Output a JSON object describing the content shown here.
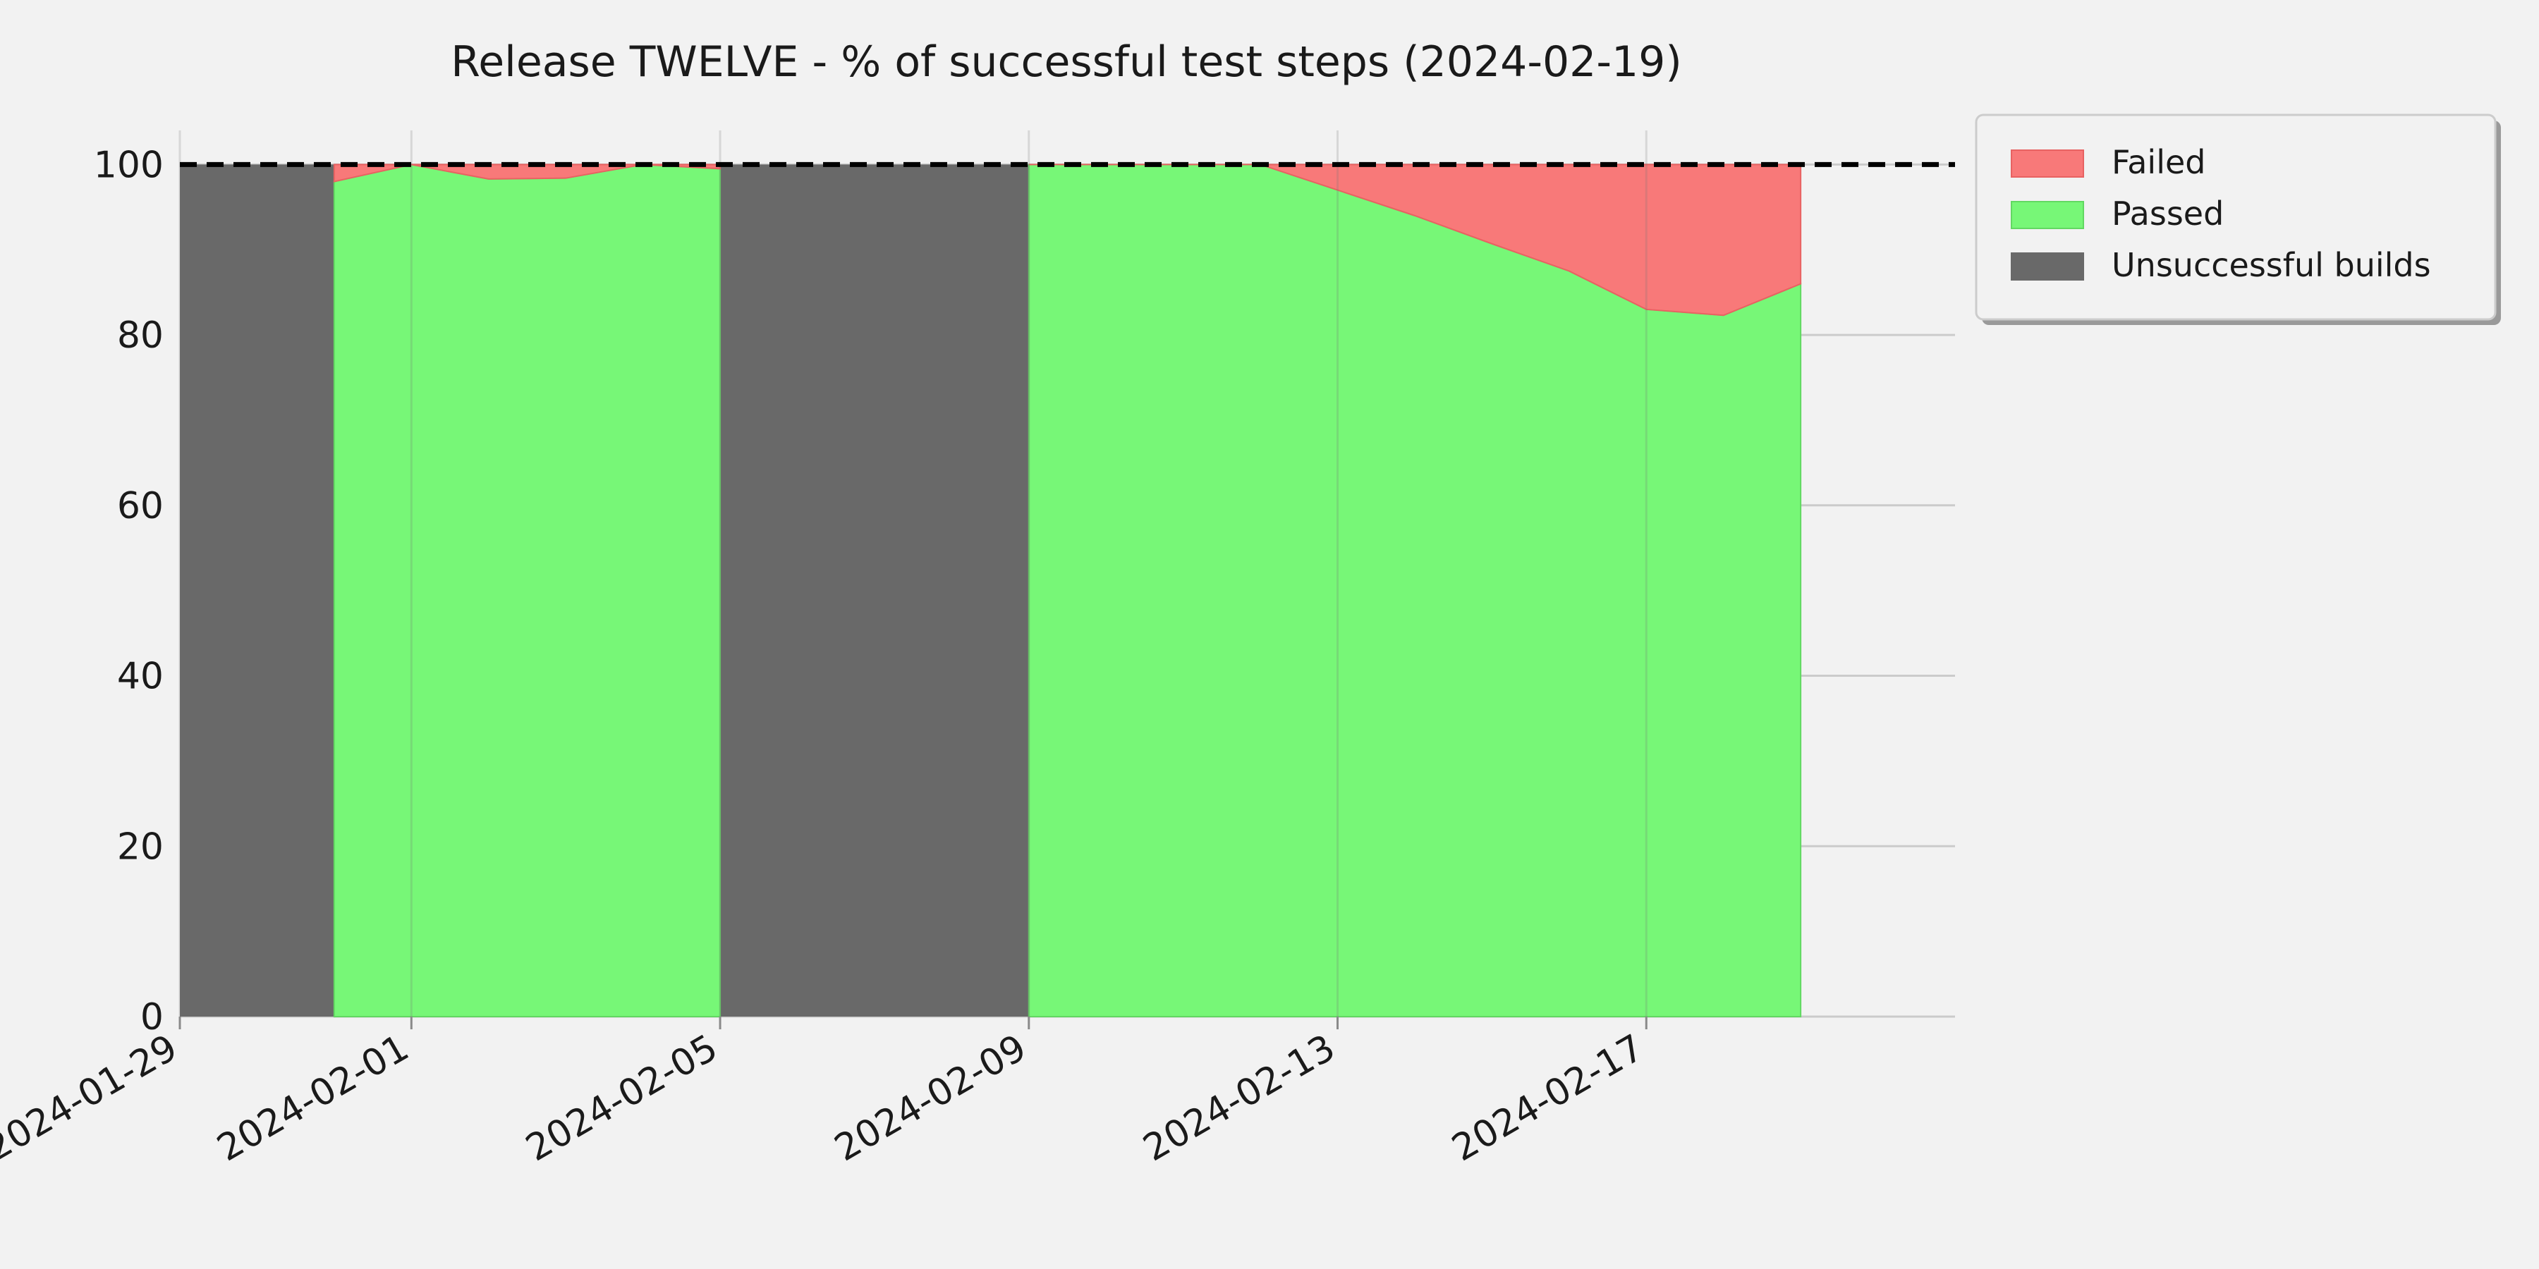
{
  "chart_data": {
    "type": "area",
    "title": "Release TWELVE - % of successful test steps (2024-02-19)",
    "xlabel": "",
    "ylabel": "",
    "x_axis": {
      "type": "date",
      "range": [
        "2024-01-29",
        "2024-02-21"
      ],
      "ticks": [
        "2024-01-29",
        "2024-02-01",
        "2024-02-05",
        "2024-02-09",
        "2024-02-13",
        "2024-02-17"
      ]
    },
    "y_axis": {
      "range": [
        0,
        104
      ],
      "ticks": [
        0,
        20,
        40,
        60,
        80,
        100
      ]
    },
    "grid": true,
    "reference_line": {
      "y": 100,
      "style": "dashed",
      "color": "#000000"
    },
    "legend": {
      "placement": "outside-top-right"
    },
    "series": [
      {
        "name": "Unsuccessful builds",
        "color": "#696969",
        "ranges": [
          {
            "from": "2024-01-29",
            "to": "2024-01-31",
            "value": 100
          },
          {
            "from": "2024-02-05",
            "to": "2024-02-09",
            "value": 100
          }
        ]
      },
      {
        "name": "Passed",
        "color": "#77f777",
        "segments": [
          {
            "x": [
              "2024-01-31",
              "2024-02-01",
              "2024-02-02",
              "2024-02-03",
              "2024-02-04",
              "2024-02-05"
            ],
            "values": [
              98,
              100,
              98.3,
              98.4,
              100,
              99.5
            ]
          },
          {
            "x": [
              "2024-02-09",
              "2024-02-10",
              "2024-02-11",
              "2024-02-12",
              "2024-02-13",
              "2024-02-14",
              "2024-02-15",
              "2024-02-16",
              "2024-02-17",
              "2024-02-18",
              "2024-02-19"
            ],
            "values": [
              100,
              100,
              100,
              100,
              97,
              94,
              90.7,
              87.5,
              83,
              82.3,
              86
            ]
          }
        ]
      },
      {
        "name": "Failed",
        "color": "#f87979",
        "segments": [
          {
            "x": [
              "2024-01-31",
              "2024-02-01",
              "2024-02-02",
              "2024-02-03",
              "2024-02-04",
              "2024-02-05"
            ],
            "values": [
              2,
              0,
              1.7,
              1.6,
              0,
              0.5
            ]
          },
          {
            "x": [
              "2024-02-09",
              "2024-02-10",
              "2024-02-11",
              "2024-02-12",
              "2024-02-13",
              "2024-02-14",
              "2024-02-15",
              "2024-02-16",
              "2024-02-17",
              "2024-02-18",
              "2024-02-19"
            ],
            "values": [
              0,
              0,
              0,
              0,
              3,
              6,
              9.3,
              12.5,
              17,
              17.7,
              14
            ]
          }
        ]
      }
    ]
  }
}
